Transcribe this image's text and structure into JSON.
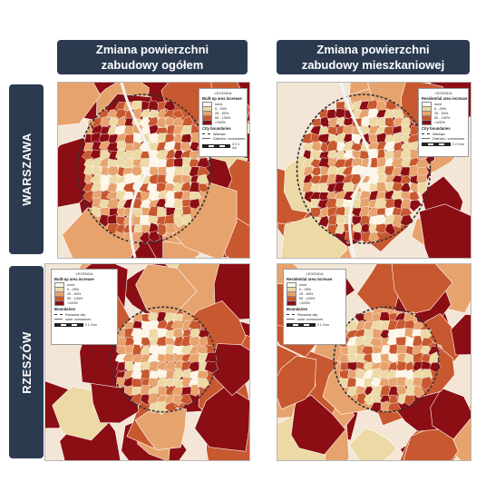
{
  "columns": [
    {
      "line1": "Zmiana powierzchni",
      "line2": "zabudowy ogółem"
    },
    {
      "line1": "Zmiana powierzchni",
      "line2": "zabudowy mieszkaniowej"
    }
  ],
  "rows": [
    {
      "label": "WARSZAWA"
    },
    {
      "label": "RZESZÓW"
    }
  ],
  "legend_shared": {
    "title": "LEGENDA",
    "classes": [
      "none",
      "0 - 25%",
      "25 - 50%",
      "50 - 100%",
      ">100%"
    ],
    "class_colors": [
      "#fdf6e8",
      "#ecd9a5",
      "#e7a36e",
      "#c8582f",
      "#8b0e14"
    ]
  },
  "maps": {
    "w1": {
      "heading": "Built-up area increase",
      "boundaries_heading": "City boundaries",
      "boundary_items": [
        "Warsaw",
        "Districts / communes"
      ],
      "scale_label": "0    2    4 km"
    },
    "w2": {
      "heading": "Residential area increase",
      "boundaries_heading": "City boundaries",
      "boundary_items": [
        "Warsaw",
        "Districts / communes"
      ],
      "scale_label": "0    2    4 km"
    },
    "r1": {
      "heading": "Built-up area increase",
      "boundaries_heading": "Boundaries",
      "boundary_items": [
        "Rzeszów city",
        "outer communes"
      ],
      "scale_label": "0    1    2 km"
    },
    "r2": {
      "heading": "Residential area increase",
      "boundaries_heading": "Boundaries",
      "boundary_items": [
        "Rzeszów city",
        "outer communes"
      ],
      "scale_label": "0    1    2 km"
    }
  }
}
